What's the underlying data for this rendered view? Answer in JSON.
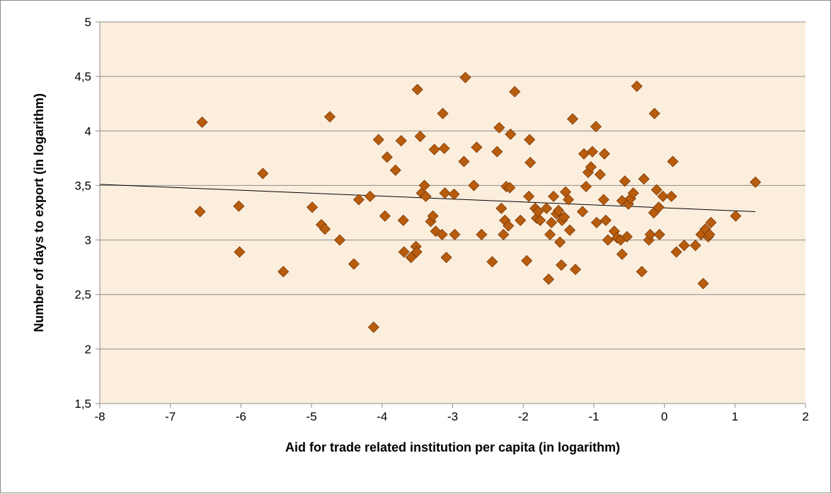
{
  "chart_data": {
    "type": "scatter",
    "title": "",
    "xlabel": "Aid for trade related institution per capita (in logarithm)",
    "ylabel": "Number of days to export (in logarithm)",
    "xlim": [
      -8,
      2
    ],
    "ylim": [
      1.5,
      5
    ],
    "x_ticks": [
      -8,
      -7,
      -6,
      -5,
      -4,
      -3,
      -2,
      -1,
      0,
      1,
      2
    ],
    "x_tick_labels": [
      "-8",
      "-7",
      "-6",
      "-5",
      "-4",
      "-3",
      "-2",
      "-1",
      "0",
      "1",
      "2"
    ],
    "y_ticks": [
      1.5,
      2,
      2.5,
      3,
      3.5,
      4,
      4.5,
      5
    ],
    "y_tick_labels": [
      "1,5",
      "2",
      "2,5",
      "3",
      "3,5",
      "4",
      "4,5",
      "5"
    ],
    "grid": "horizontal",
    "legend": "none",
    "colors": {
      "plot_background": "#fbeedd",
      "marker_fill": "#b85c0e",
      "marker_stroke": "#7a3a06",
      "gridline": "#8c8c8c",
      "trendline": "#000000"
    },
    "series": [
      {
        "marker": "diamond",
        "points": [
          [
            -6.55,
            4.08
          ],
          [
            -6.58,
            3.26
          ],
          [
            -6.03,
            3.31
          ],
          [
            -6.02,
            2.89
          ],
          [
            -5.69,
            3.61
          ],
          [
            -5.4,
            2.71
          ],
          [
            -4.99,
            3.3
          ],
          [
            -4.86,
            3.14
          ],
          [
            -4.81,
            3.1
          ],
          [
            -4.74,
            4.13
          ],
          [
            -4.6,
            3.0
          ],
          [
            -4.4,
            2.78
          ],
          [
            -4.33,
            3.37
          ],
          [
            -4.17,
            3.4
          ],
          [
            -4.12,
            2.2
          ],
          [
            -4.05,
            3.92
          ],
          [
            -3.96,
            3.22
          ],
          [
            -3.93,
            3.76
          ],
          [
            -3.81,
            3.64
          ],
          [
            -3.73,
            3.91
          ],
          [
            -3.7,
            3.18
          ],
          [
            -3.69,
            2.89
          ],
          [
            -3.59,
            2.84
          ],
          [
            -3.52,
            2.94
          ],
          [
            -3.5,
            4.38
          ],
          [
            -3.51,
            2.89
          ],
          [
            -3.46,
            3.95
          ],
          [
            -3.44,
            3.43
          ],
          [
            -3.4,
            3.5
          ],
          [
            -3.38,
            3.4
          ],
          [
            -3.31,
            3.17
          ],
          [
            -3.28,
            3.22
          ],
          [
            -3.26,
            3.83
          ],
          [
            -3.24,
            3.08
          ],
          [
            -3.15,
            3.05
          ],
          [
            -3.14,
            4.16
          ],
          [
            -3.12,
            3.84
          ],
          [
            -3.11,
            3.43
          ],
          [
            -3.09,
            2.84
          ],
          [
            -2.98,
            3.42
          ],
          [
            -2.97,
            3.05
          ],
          [
            -2.84,
            3.72
          ],
          [
            -2.82,
            4.49
          ],
          [
            -2.7,
            3.5
          ],
          [
            -2.66,
            3.85
          ],
          [
            -2.59,
            3.05
          ],
          [
            -2.44,
            2.8
          ],
          [
            -2.37,
            3.81
          ],
          [
            -2.34,
            4.03
          ],
          [
            -2.31,
            3.29
          ],
          [
            -2.28,
            3.05
          ],
          [
            -2.26,
            3.18
          ],
          [
            -2.24,
            3.49
          ],
          [
            -2.21,
            3.13
          ],
          [
            -2.19,
            3.48
          ],
          [
            -2.18,
            3.97
          ],
          [
            -2.12,
            4.36
          ],
          [
            -2.04,
            3.18
          ],
          [
            -1.95,
            2.81
          ],
          [
            -1.92,
            3.4
          ],
          [
            -1.91,
            3.92
          ],
          [
            -1.9,
            3.71
          ],
          [
            -1.83,
            3.29
          ],
          [
            -1.81,
            3.2
          ],
          [
            -1.79,
            3.26
          ],
          [
            -1.76,
            3.18
          ],
          [
            -1.67,
            3.29
          ],
          [
            -1.64,
            2.64
          ],
          [
            -1.62,
            3.05
          ],
          [
            -1.6,
            3.16
          ],
          [
            -1.57,
            3.4
          ],
          [
            -1.53,
            3.24
          ],
          [
            -1.5,
            3.27
          ],
          [
            -1.48,
            2.98
          ],
          [
            -1.46,
            2.77
          ],
          [
            -1.45,
            3.18
          ],
          [
            -1.42,
            3.21
          ],
          [
            -1.4,
            3.44
          ],
          [
            -1.36,
            3.37
          ],
          [
            -1.34,
            3.09
          ],
          [
            -1.3,
            4.11
          ],
          [
            -1.26,
            2.73
          ],
          [
            -1.16,
            3.26
          ],
          [
            -1.14,
            3.79
          ],
          [
            -1.11,
            3.49
          ],
          [
            -1.08,
            3.62
          ],
          [
            -1.04,
            3.67
          ],
          [
            -1.02,
            3.81
          ],
          [
            -0.97,
            4.04
          ],
          [
            -0.96,
            3.16
          ],
          [
            -0.91,
            3.6
          ],
          [
            -0.86,
            3.37
          ],
          [
            -0.85,
            3.79
          ],
          [
            -0.83,
            3.18
          ],
          [
            -0.8,
            3.0
          ],
          [
            -0.71,
            3.08
          ],
          [
            -0.67,
            3.02
          ],
          [
            -0.62,
            3.0
          ],
          [
            -0.6,
            3.36
          ],
          [
            -0.6,
            2.87
          ],
          [
            -0.56,
            3.54
          ],
          [
            -0.53,
            3.03
          ],
          [
            -0.51,
            3.33
          ],
          [
            -0.48,
            3.38
          ],
          [
            -0.44,
            3.43
          ],
          [
            -0.39,
            4.41
          ],
          [
            -0.32,
            2.71
          ],
          [
            -0.29,
            3.56
          ],
          [
            -0.22,
            3.0
          ],
          [
            -0.2,
            3.05
          ],
          [
            -0.15,
            3.25
          ],
          [
            -0.14,
            4.16
          ],
          [
            -0.11,
            3.46
          ],
          [
            -0.08,
            3.3
          ],
          [
            -0.07,
            3.05
          ],
          [
            -0.02,
            3.4
          ],
          [
            0.1,
            3.4
          ],
          [
            0.12,
            3.72
          ],
          [
            0.17,
            2.89
          ],
          [
            0.28,
            2.95
          ],
          [
            0.44,
            2.95
          ],
          [
            0.52,
            3.05
          ],
          [
            0.55,
            2.6
          ],
          [
            0.58,
            3.1
          ],
          [
            0.62,
            3.03
          ],
          [
            0.64,
            3.05
          ],
          [
            0.66,
            3.16
          ],
          [
            1.01,
            3.22
          ],
          [
            1.29,
            3.53
          ]
        ]
      }
    ],
    "trendline": {
      "x": [
        -8,
        1.29
      ],
      "y": [
        3.51,
        3.26
      ]
    }
  }
}
